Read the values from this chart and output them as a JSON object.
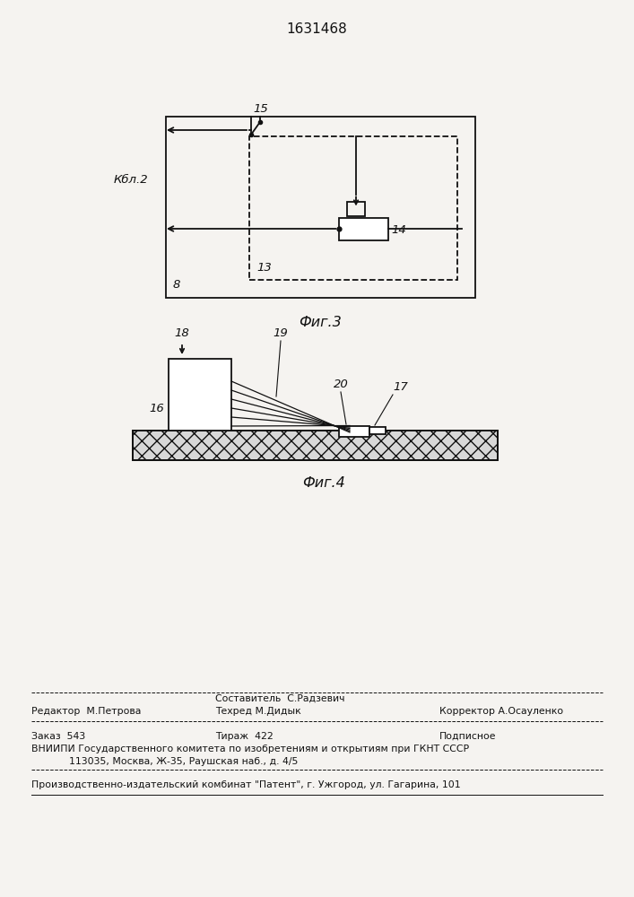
{
  "title": "1631468",
  "bg_color": "#f5f3f0",
  "fig3_label": "Фиг.3",
  "fig4_label": "Фиг.4",
  "label_8": "8",
  "label_13": "13",
  "label_14": "14",
  "label_15": "15",
  "label_kbl2": "Кбл.2",
  "label_16": "16",
  "label_17": "17",
  "label_18": "18",
  "label_19": "19",
  "label_20": "20",
  "footer_line1_mid": "Составитель  С.Радзевич",
  "footer_line1_left": "Редактор  М.Петрова",
  "footer_line1_mid2": "Техред М.Дидык",
  "footer_line1_right": "Корректор А.Осауленко",
  "footer_line2_left": "Заказ  543",
  "footer_line2_mid": "Тираж  422",
  "footer_line2_right": "Подписное",
  "footer_line3": "ВНИИПИ Государственного комитета по изобретениям и открытиям при ГКНТ СССР",
  "footer_line4": "            113035, Москва, Ж-35, Раушская наб., д. 4/5",
  "footer_line5": "Производственно-издательский комбинат \"Патент\", г. Ужгород, ул. Гагарина, 101"
}
